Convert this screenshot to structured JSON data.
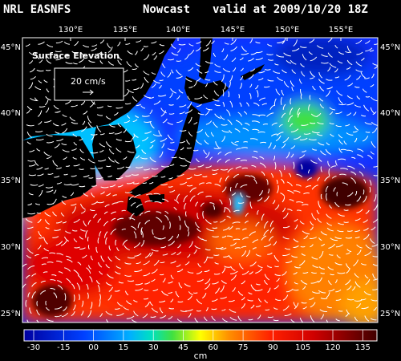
{
  "header": {
    "left": "NRL EASNFS",
    "mid": "Nowcast",
    "right": "valid at 2009/10/20 18Z"
  },
  "lon_labels": [
    "130°E",
    "135°E",
    "140°E",
    "145°E",
    "150°E",
    "155°E"
  ],
  "lat_labels": [
    "45°N",
    "40°N",
    "35°N",
    "30°N",
    "25°N"
  ],
  "legend": {
    "title": "Surface Elevation",
    "vector_label": "20 cm/s"
  },
  "colorbar": {
    "ticks": [
      "-30",
      "-15",
      "00",
      "15",
      "30",
      "45",
      "60",
      "75",
      "90",
      "105",
      "120",
      "135"
    ],
    "unit": "cm"
  },
  "colors": {
    "land": "#000000",
    "low": "#0000c0",
    "high": "#400000",
    "arrows": "#ffffff"
  }
}
